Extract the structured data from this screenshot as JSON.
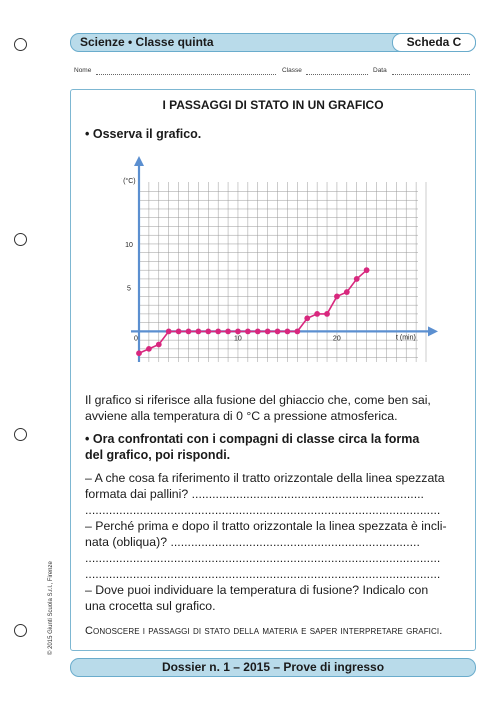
{
  "header": {
    "subject": "Scienze • Classe quinta",
    "scheda": "Scheda C"
  },
  "form": {
    "name_label": "Nome",
    "class_label": "Classe",
    "date_label": "Data"
  },
  "title": "I PASSAGGI DI STATO IN UN GRAFICO",
  "instruction1": "Osserva il grafico.",
  "chart_data": {
    "type": "line",
    "ylabel": "T (°C)",
    "xlabel": "t (min)",
    "xlim": [
      0,
      29
    ],
    "ylim": [
      -3.5,
      18
    ],
    "xticks": [
      0,
      10,
      20
    ],
    "yticks": [
      5,
      10
    ],
    "x": [
      0,
      1,
      2,
      3,
      4,
      5,
      6,
      7,
      8,
      9,
      10,
      11,
      12,
      13,
      14,
      15,
      16,
      17,
      18,
      19,
      20,
      21,
      22,
      23
    ],
    "y": [
      -2.5,
      -2,
      -1.5,
      0,
      0,
      0,
      0,
      0,
      0,
      0,
      0,
      0,
      0,
      0,
      0,
      0,
      0,
      1.5,
      2,
      2,
      4,
      4.5,
      6,
      7
    ]
  },
  "paragraph": "Il grafico si riferisce alla fusione del ghiaccio che, come ben sai, avviene alla temperatura di 0 °C a pressione atmosferica.",
  "instruction2_line1": "Ora confrontati con i compagni di classe circa la forma",
  "instruction2_line2": "del grafico, poi rispondi.",
  "q1_line1": "– A che cosa fa riferimento il tratto orizzontale della linea spezzata",
  "q1_line2": "formata dai pallini? ....................................................................",
  "q1_line3": "........................................................................................................",
  "q2_line1": "– Perché prima e dopo il tratto orizzontale la linea spezzata è incli-",
  "q2_line2": "nata (obliqua)? .........................................................................",
  "q2_line3": "........................................................................................................",
  "q2_line4": "........................................................................................................",
  "q3_line1": "– Dove puoi individuare la temperatura di fusione? Indicalo con",
  "q3_line2": "una crocetta sul grafico.",
  "objective": "Conoscere i passaggi di stato della materia e saper interpretare grafici.",
  "footer": "Dossier n. 1 – 2015 – Prove di ingresso",
  "copyright": "© 2015 Giunti Scuola S.r.l., Firenze",
  "colors": {
    "band": "#b9dbea",
    "axis": "#5b8fd0",
    "points": "#d8287e"
  }
}
